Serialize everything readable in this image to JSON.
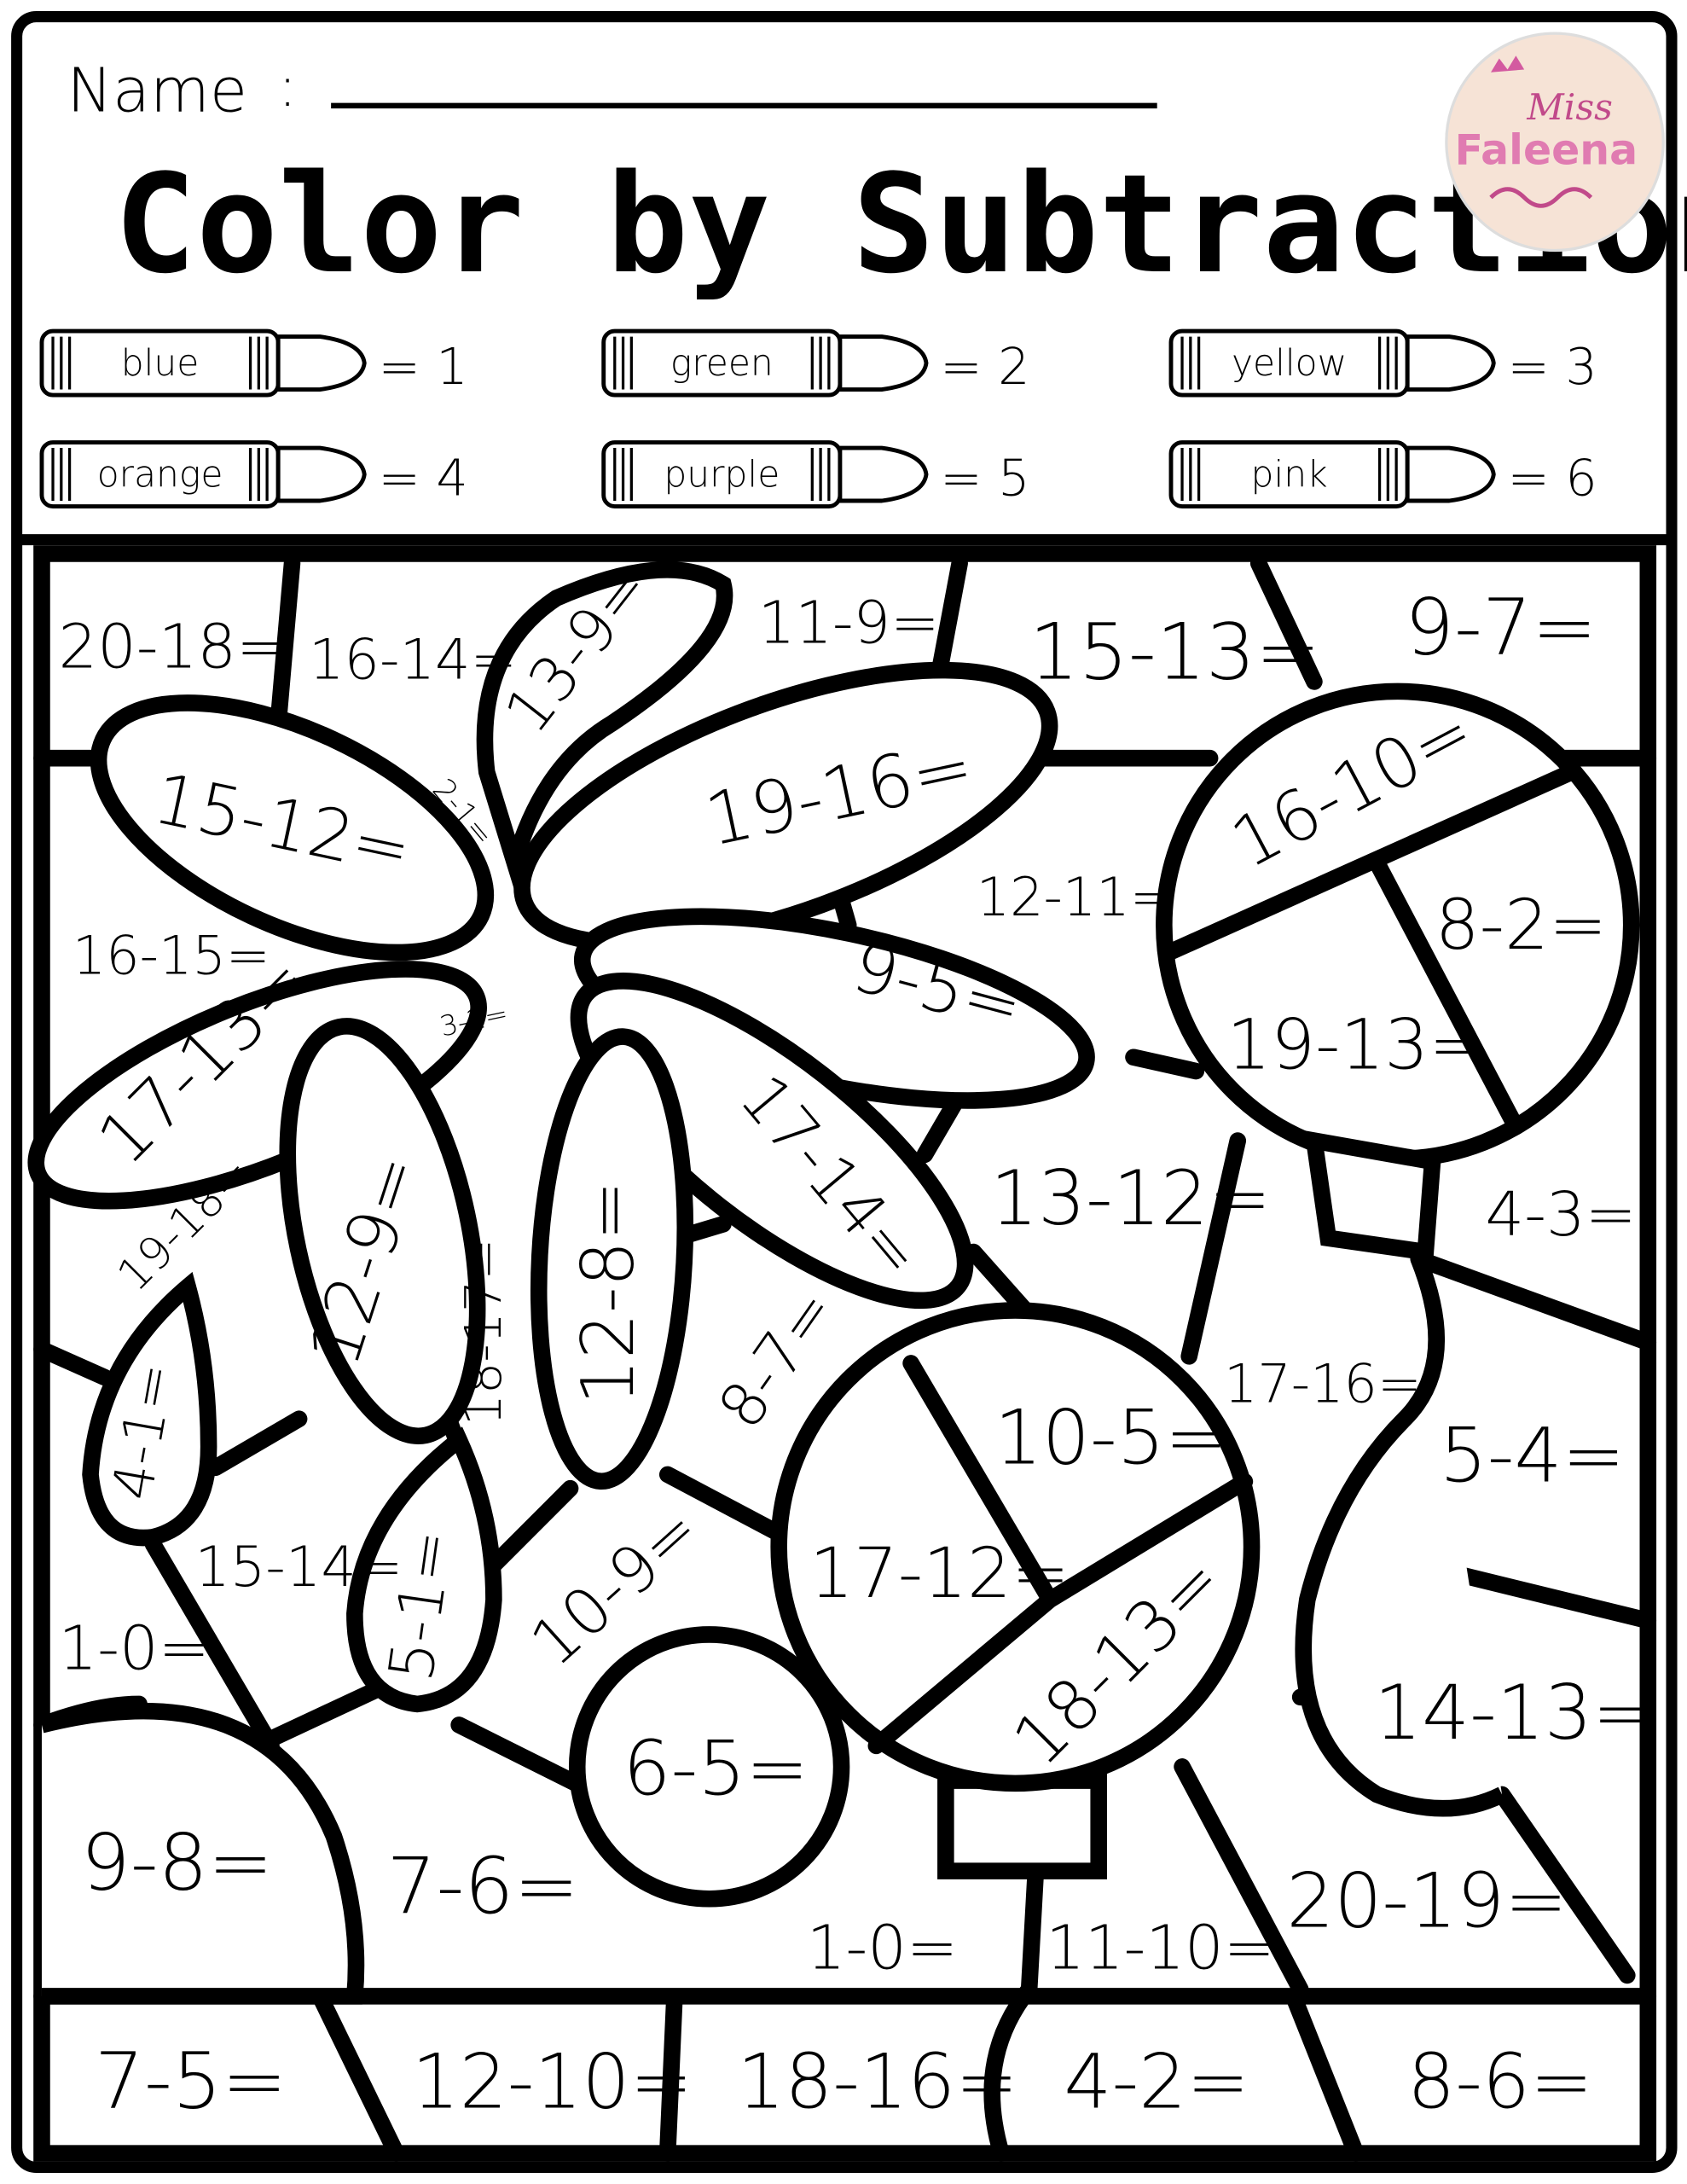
{
  "header": {
    "name_label": "Name",
    "name_colon": ":",
    "title": "Color by Subtraction",
    "logo_text": [
      "Miss",
      "Faleena"
    ]
  },
  "key": [
    {
      "color": "blue",
      "value": "= 1",
      "hex": "#2f6fd6"
    },
    {
      "color": "green",
      "value": "= 2",
      "hex": "#2fa34a"
    },
    {
      "color": "yellow",
      "value": "= 3",
      "hex": "#f2d21b"
    },
    {
      "color": "orange",
      "value": "= 4",
      "hex": "#f08a1c"
    },
    {
      "color": "purple",
      "value": "= 5",
      "hex": "#8b3fb8"
    },
    {
      "color": "pink",
      "value": "= 6",
      "hex": "#f06aa8"
    }
  ],
  "problems": [
    "20-18=",
    "16-14=",
    "13-9=",
    "11-9=",
    "15-13=",
    "9-7=",
    "15-12=",
    "2-1=",
    "19-16=",
    "16-10=",
    "12-11=",
    "8-2=",
    "16-15=",
    "9-5=",
    "19-13=",
    "3-2=",
    "17-13=",
    "17-14=",
    "13-12=",
    "4-3=",
    "19-18=",
    "12-9=",
    "18-17=",
    "12-8=",
    "8-7=",
    "17-16=",
    "10-5=",
    "5-4=",
    "4-1=",
    "15-14=",
    "17-12=",
    "1-0=",
    "5-1=",
    "10-9=",
    "14-13=",
    "18-13=",
    "6-5=",
    "9-8=",
    "7-6=",
    "20-19=",
    "1-0=",
    "11-10=",
    "7-5=",
    "12-10=",
    "18-16=",
    "4-2=",
    "8-6="
  ]
}
